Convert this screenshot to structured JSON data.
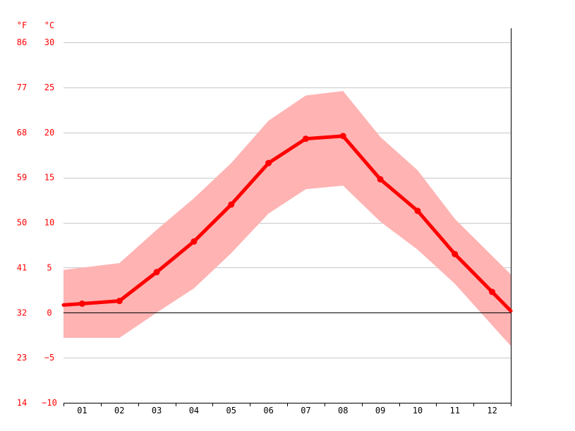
{
  "chart_data": {
    "type": "line",
    "unit_f": "°F",
    "unit_c": "°C",
    "categories": [
      "01",
      "02",
      "03",
      "04",
      "05",
      "06",
      "07",
      "08",
      "09",
      "10",
      "11",
      "12"
    ],
    "y_ticks_c": [
      -10,
      -5,
      0,
      5,
      10,
      15,
      20,
      25,
      30
    ],
    "y_ticks_f": [
      14,
      23,
      32,
      41,
      50,
      59,
      68,
      77,
      86
    ],
    "ylim": [
      -10,
      30
    ],
    "grid": true,
    "series": [
      {
        "values": [
          1.0,
          1.3,
          4.5,
          7.9,
          12.0,
          16.6,
          19.3,
          19.6,
          14.8,
          11.3,
          6.5,
          2.3
        ]
      }
    ],
    "band_max": [
      5.0,
      5.5,
      9.2,
      12.7,
      16.6,
      21.3,
      24.1,
      24.6,
      19.5,
      15.8,
      10.4,
      6.3
    ],
    "band_min": [
      -2.8,
      -2.8,
      0.0,
      2.7,
      6.6,
      11.0,
      13.7,
      14.1,
      10.1,
      7.0,
      3.2,
      -1.4
    ],
    "colors": {
      "line": "#ff0000",
      "band": "#ffb3b3",
      "grid": "#c8c8c8",
      "axis": "#000000",
      "labels": "#ff0000"
    }
  }
}
